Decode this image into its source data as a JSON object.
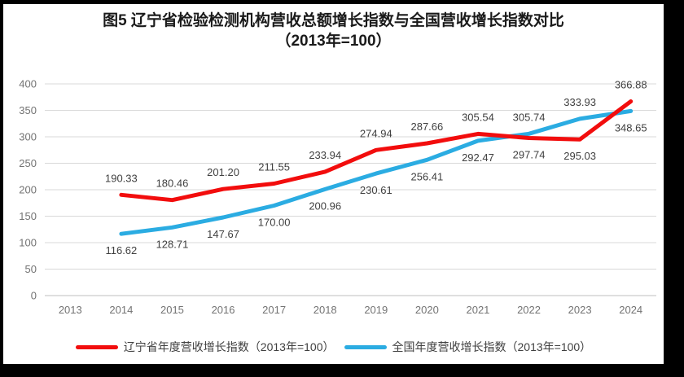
{
  "chart_data": {
    "type": "line",
    "title": "图5  辽宁省检验检测机构营收总额增长指数与全国营收增长指数对比（2013年=100）",
    "title_line1": "图5  辽宁省检验检测机构营收总额增长指数与全国营收增长指数对比",
    "title_line2": "（2013年=100）",
    "xlabel": "",
    "ylabel": "",
    "categories": [
      "2013",
      "2014",
      "2015",
      "2016",
      "2017",
      "2018",
      "2019",
      "2020",
      "2021",
      "2022",
      "2023",
      "2024"
    ],
    "series": [
      {
        "id": "liaoning",
        "name": "辽宁省年度营收增长指数（2013年=100）",
        "color": "#F20D0D",
        "values": [
          null,
          190.33,
          180.46,
          201.2,
          211.55,
          233.94,
          274.94,
          287.66,
          305.54,
          297.74,
          295.03,
          366.88
        ],
        "label_side": [
          "",
          "above",
          "above",
          "above",
          "above",
          "above",
          "above",
          "above",
          "above",
          "below",
          "below",
          "above"
        ]
      },
      {
        "id": "national",
        "name": "全国年度营收增长指数（2013年=100）",
        "color": "#2BACE2",
        "values": [
          null,
          116.62,
          128.71,
          147.67,
          170.0,
          200.96,
          230.61,
          256.41,
          292.47,
          305.74,
          333.93,
          348.65
        ],
        "label_side": [
          "",
          "below",
          "below",
          "below",
          "below",
          "below",
          "below",
          "below",
          "below",
          "above",
          "above",
          "below"
        ]
      }
    ],
    "ylim": [
      0,
      400
    ],
    "ytick_step": 50,
    "grid": true,
    "legend_position": "bottom",
    "colors": {
      "gridline": "#D9D9D9",
      "axis_line": "#BFBFBF",
      "axis_label": "#737373",
      "data_label": "#3f3f3f"
    }
  }
}
